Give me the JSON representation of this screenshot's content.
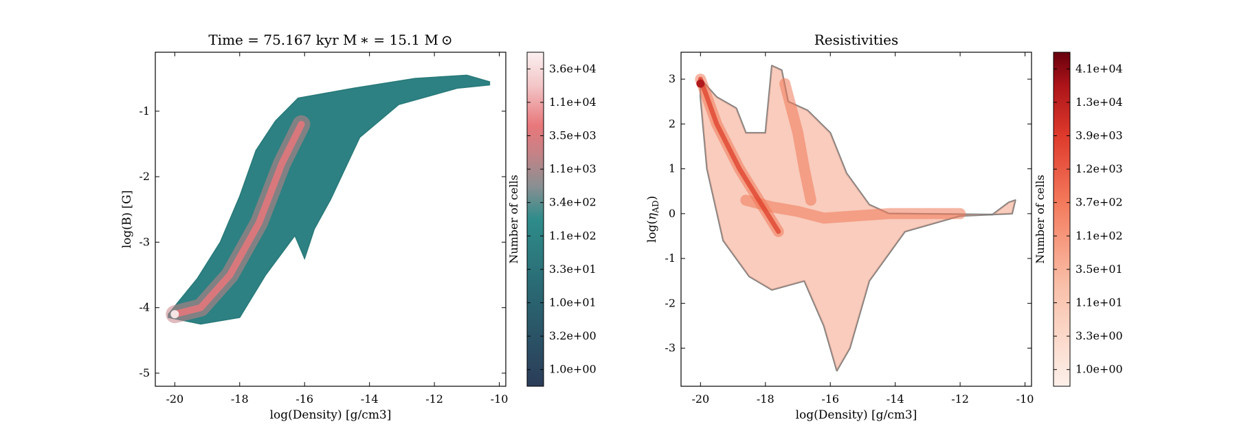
{
  "figure": {
    "panels": [
      {
        "title": "Time = 75.167 kyr    M ∗ = 15.1 M ⊙",
        "xlabel": "log(Density) [g/cm3]",
        "ylabel": "log(B) [G]",
        "cbar_label": "Number of cells"
      },
      {
        "title": "Resistivities",
        "xlabel": "log(Density) [g/cm3]",
        "ylabel": "log(η_AD)",
        "cbar_label": "Number of cells"
      }
    ]
  },
  "chart_data": [
    {
      "type": "heatmap",
      "title": "Time = 75.167 kyr    M ∗ = 15.1 M ⊙",
      "xlabel": "log(Density) [g/cm3]",
      "ylabel": "log(B) [G]",
      "xlim": [
        -20.6,
        -9.8
      ],
      "ylim": [
        -5.2,
        -0.1
      ],
      "xticks": [
        -20,
        -18,
        -16,
        -14,
        -12,
        -10
      ],
      "yticks": [
        -5,
        -4,
        -3,
        -2,
        -1
      ],
      "colormap": "dark-blue → teal → salmon → white",
      "colors": {
        "low": "#2b3c58",
        "mid": "#2e8c8a",
        "high": "#e8777a",
        "top": "#fbf0f0"
      },
      "colorbar": {
        "label": "Number of cells",
        "scale": "log",
        "ticks": [
          "1.0e+00",
          "3.2e+00",
          "1.0e+01",
          "3.3e+01",
          "1.1e+02",
          "3.4e+02",
          "1.1e+03",
          "3.5e+03",
          "1.1e+04",
          "3.6e+04"
        ]
      },
      "occupied_region": {
        "upper_edge": [
          [
            -20.2,
            -4.1
          ],
          [
            -19.3,
            -3.55
          ],
          [
            -18.6,
            -3.0
          ],
          [
            -18.0,
            -2.3
          ],
          [
            -17.5,
            -1.6
          ],
          [
            -16.9,
            -1.15
          ],
          [
            -16.2,
            -0.8
          ],
          [
            -14.5,
            -0.65
          ],
          [
            -12.6,
            -0.5
          ],
          [
            -11.0,
            -0.45
          ],
          [
            -10.3,
            -0.55
          ]
        ],
        "lower_edge": [
          [
            -10.3,
            -0.6
          ],
          [
            -11.3,
            -0.65
          ],
          [
            -13.1,
            -0.9
          ],
          [
            -14.3,
            -1.4
          ],
          [
            -15.2,
            -2.35
          ],
          [
            -15.7,
            -2.8
          ],
          [
            -16.0,
            -3.25
          ],
          [
            -16.3,
            -2.9
          ],
          [
            -17.2,
            -3.5
          ],
          [
            -18.0,
            -4.15
          ],
          [
            -19.2,
            -4.25
          ],
          [
            -20.2,
            -4.15
          ]
        ]
      },
      "ridge": [
        [
          -20.0,
          -4.1
        ],
        [
          -19.2,
          -4.0
        ],
        [
          -18.3,
          -3.5
        ],
        [
          -17.4,
          -2.7
        ],
        [
          -16.7,
          -1.8
        ],
        [
          -16.1,
          -1.2
        ]
      ]
    },
    {
      "type": "heatmap",
      "title": "Resistivities",
      "xlabel": "log(Density) [g/cm3]",
      "ylabel": "log(η_AD)",
      "xlim": [
        -20.6,
        -9.8
      ],
      "ylim": [
        -3.85,
        3.6
      ],
      "xticks": [
        -20,
        -18,
        -16,
        -14,
        -12,
        -10
      ],
      "yticks": [
        -3,
        -2,
        -1,
        0,
        1,
        2,
        3
      ],
      "colormap": "white → red",
      "colors": {
        "low": "#fdece4",
        "mid": "#f07858",
        "high": "#b01a1d",
        "top": "#67000d",
        "contour": "#7a7a7a"
      },
      "colorbar": {
        "label": "Number of cells",
        "scale": "log",
        "ticks": [
          "1.0e+00",
          "3.3e+00",
          "1.1e+01",
          "3.5e+01",
          "1.1e+02",
          "3.7e+02",
          "1.2e+03",
          "3.9e+03",
          "1.3e+04",
          "4.1e+04"
        ]
      },
      "occupied_region": {
        "outline": [
          [
            -20.0,
            3.0
          ],
          [
            -19.5,
            2.6
          ],
          [
            -18.9,
            2.35
          ],
          [
            -18.6,
            1.8
          ],
          [
            -18.0,
            1.8
          ],
          [
            -17.8,
            3.3
          ],
          [
            -17.5,
            3.2
          ],
          [
            -17.3,
            2.5
          ],
          [
            -16.7,
            2.3
          ],
          [
            -16.0,
            1.8
          ],
          [
            -15.5,
            0.9
          ],
          [
            -14.8,
            0.2
          ],
          [
            -14.2,
            0.0
          ],
          [
            -11.0,
            -0.02
          ],
          [
            -10.5,
            0.25
          ],
          [
            -10.3,
            0.3
          ],
          [
            -10.4,
            0.0
          ],
          [
            -12.0,
            -0.05
          ],
          [
            -13.7,
            -0.4
          ],
          [
            -14.8,
            -1.5
          ],
          [
            -15.4,
            -3.0
          ],
          [
            -15.8,
            -3.5
          ],
          [
            -16.2,
            -2.5
          ],
          [
            -16.8,
            -1.5
          ],
          [
            -17.8,
            -1.7
          ],
          [
            -18.5,
            -1.4
          ],
          [
            -19.3,
            -0.6
          ],
          [
            -19.8,
            1.0
          ],
          [
            -20.0,
            2.6
          ]
        ]
      },
      "ridges": [
        [
          [
            -20.0,
            3.0
          ],
          [
            -19.5,
            2.0
          ],
          [
            -18.8,
            1.0
          ],
          [
            -18.2,
            0.3
          ],
          [
            -17.6,
            -0.4
          ]
        ],
        [
          [
            -18.6,
            0.3
          ],
          [
            -17.8,
            0.15
          ],
          [
            -17.0,
            0.05
          ],
          [
            -16.2,
            -0.1
          ],
          [
            -14.2,
            0.0
          ],
          [
            -12.0,
            0.0
          ]
        ],
        [
          [
            -17.4,
            2.9
          ],
          [
            -17.0,
            1.8
          ],
          [
            -16.8,
            1.0
          ],
          [
            -16.6,
            0.3
          ]
        ]
      ]
    }
  ]
}
